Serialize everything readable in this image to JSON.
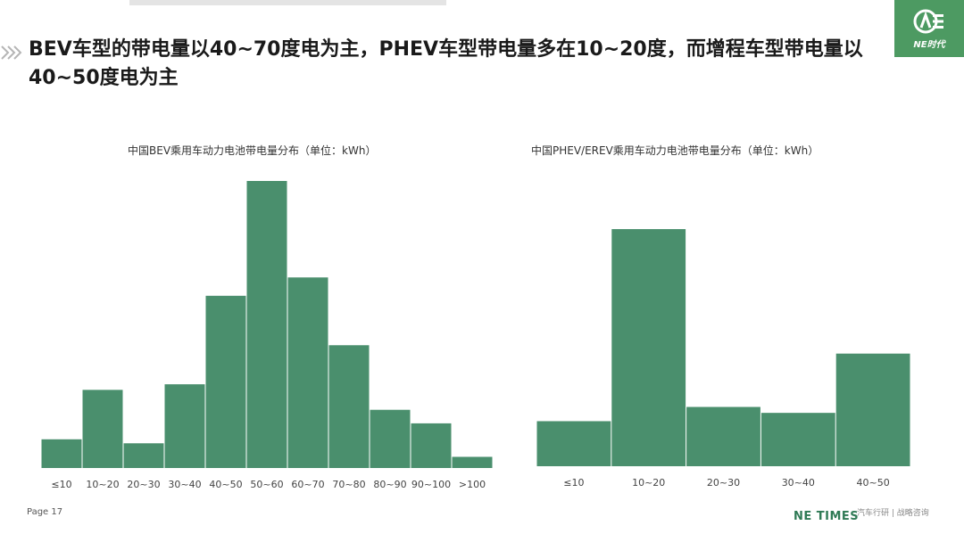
{
  "headline": "BEV车型的带电量以40~70度电为主，PHEV车型带电量多在10~20度，而增程车型带电量以40~50度电为主",
  "logo": {
    "icon": "ne-times-logo-icon",
    "text": "NE时代"
  },
  "colors": {
    "bar": "#4a8f6d",
    "accent": "#4d9a62",
    "brand": "#2f7a55"
  },
  "chart_data": [
    {
      "type": "bar",
      "title": "中国BEV乘用车动力电池带电量分布（单位：kWh）",
      "categories": [
        "≤10",
        "10~20",
        "20~30",
        "30~40",
        "40~50",
        "50~60",
        "60~70",
        "70~80",
        "80~90",
        "90~100",
        ">100"
      ],
      "values": [
        3.6,
        9.8,
        3.1,
        10.5,
        21.6,
        36.0,
        23.9,
        15.4,
        7.3,
        5.6,
        1.4
      ],
      "ylim": [
        0,
        36
      ],
      "grid": false,
      "legend": "none"
    },
    {
      "type": "bar",
      "title": "中国PHEV/EREV乘用车动力电池带电量分布（单位：kWh）",
      "categories": [
        "≤10",
        "10~20",
        "20~30",
        "30~40",
        "40~50"
      ],
      "values": [
        19,
        100,
        25,
        22.5,
        47.5
      ],
      "ylim": [
        0,
        100
      ],
      "grid": false,
      "legend": "none"
    }
  ],
  "footer": {
    "page": "Page 17",
    "brand": "NE TIMES",
    "tagline": "汽车行研 | 战略咨询"
  }
}
